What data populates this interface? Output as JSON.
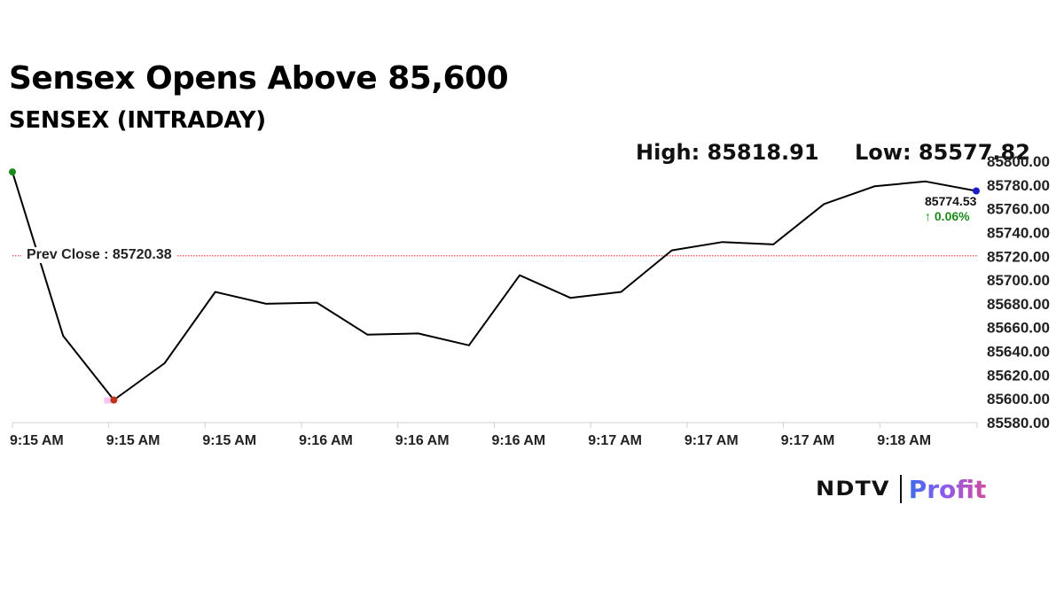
{
  "header": {
    "title": "Sensex Opens Above 85,600",
    "subtitle": "SENSEX (INTRADAY)",
    "high_label": "High: 85818.91",
    "low_label": "Low: 85577.82"
  },
  "annotations": {
    "prev_close_label": "Prev Close : 85720.38",
    "last_value": "85774.53",
    "last_change": "↑ 0.06%"
  },
  "branding": {
    "ndtv": "NDTV",
    "profit": "Profit"
  },
  "colors": {
    "line": "#000000",
    "prev_close_line": "#e0202a",
    "start_marker": "#1a8a1a",
    "low_marker": "#c0341a",
    "end_marker": "#1a1acc",
    "positive": "#1a8a1a"
  },
  "chart_data": {
    "type": "line",
    "title": "Sensex Opens Above 85,600",
    "subtitle": "SENSEX (INTRADAY)",
    "xlabel": "",
    "ylabel": "",
    "ylim": [
      85580,
      85800
    ],
    "y_ticks": [
      "85580.00",
      "85600.00",
      "85620.00",
      "85640.00",
      "85660.00",
      "85680.00",
      "85700.00",
      "85720.00",
      "85740.00",
      "85760.00",
      "85780.00",
      "85800.00"
    ],
    "x_tick_labels": [
      "9:15 AM",
      "9:15 AM",
      "9:15 AM",
      "9:16 AM",
      "9:16 AM",
      "9:16 AM",
      "9:17 AM",
      "9:17 AM",
      "9:17 AM",
      "9:18 AM"
    ],
    "grid": false,
    "legend": null,
    "reference_lines": [
      {
        "name": "Prev Close",
        "value": 85720.38
      }
    ],
    "high": 85818.91,
    "low": 85577.82,
    "last": 85774.53,
    "change_pct": 0.06,
    "series": [
      {
        "name": "SENSEX",
        "x": [
          0,
          1,
          2,
          3,
          4,
          5,
          6,
          7,
          8,
          9,
          10,
          11,
          12,
          13,
          14,
          15,
          16,
          17,
          18,
          19
        ],
        "values": [
          85791,
          85653,
          85599,
          85630,
          85690,
          85680,
          85681,
          85654,
          85655,
          85645,
          85704,
          85685,
          85690,
          85725,
          85732,
          85730,
          85764,
          85779,
          85783,
          85775
        ]
      }
    ]
  }
}
